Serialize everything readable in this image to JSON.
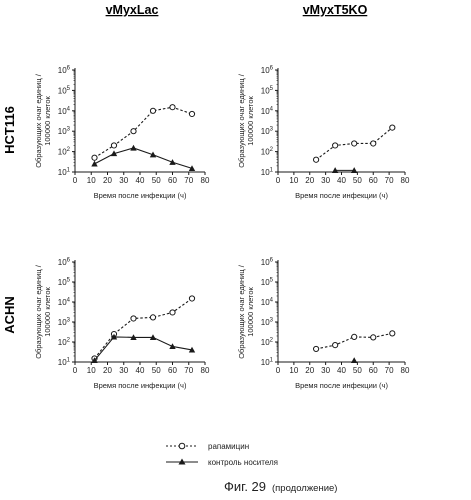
{
  "columns": [
    "vMyxLac",
    "vMyxT5KO"
  ],
  "rows": [
    "HCT116",
    "ACHN"
  ],
  "caption": {
    "main": "Фиг. 29",
    "sub": "(продолжение)"
  },
  "legend": [
    {
      "label": "рапамицин",
      "marker": "circle"
    },
    {
      "label": "контроль носителя",
      "marker": "triangle"
    }
  ],
  "colors": {
    "line": "#1a1a1a",
    "axis": "#1a1a1a",
    "marker_fill": "#ffffff"
  },
  "chart_data": [
    {
      "type": "line",
      "row": "HCT116",
      "column": "vMyxLac",
      "xlabel": "Время после инфекции (ч)",
      "ylabel": "Образующих очаг единиц / 100000 клеток",
      "xlim": [
        0,
        80
      ],
      "ylim": [
        10,
        1000000
      ],
      "yscale": "log",
      "xticks": [
        "0",
        "10",
        "20",
        "30",
        "40",
        "50",
        "60",
        "70",
        "80"
      ],
      "yticks": [
        "10^1",
        "10^2",
        "10^3",
        "10^4",
        "10^5",
        "10^6"
      ],
      "series": [
        {
          "marker": "circle",
          "style": "dashed",
          "x": [
            12,
            24,
            36,
            48,
            60,
            72
          ],
          "y": [
            50,
            200,
            1000,
            10000,
            15000,
            7000
          ]
        },
        {
          "marker": "triangle",
          "style": "solid",
          "x": [
            12,
            24,
            36,
            48,
            60,
            72
          ],
          "y": [
            25,
            80,
            150,
            70,
            30,
            15
          ]
        }
      ]
    },
    {
      "type": "line",
      "row": "HCT116",
      "column": "vMyxT5KO",
      "xlabel": "Время после инфекции (ч)",
      "ylabel": "Образующих очаг единиц / 100000 клеток",
      "xlim": [
        0,
        80
      ],
      "ylim": [
        10,
        1000000
      ],
      "yscale": "log",
      "xticks": [
        "0",
        "10",
        "20",
        "30",
        "40",
        "50",
        "60",
        "70",
        "80"
      ],
      "yticks": [
        "10^1",
        "10^2",
        "10^3",
        "10^4",
        "10^5",
        "10^6"
      ],
      "series": [
        {
          "marker": "circle",
          "style": "dashed",
          "x": [
            24,
            36,
            48,
            60,
            72
          ],
          "y": [
            40,
            200,
            250,
            250,
            1500
          ]
        },
        {
          "marker": "triangle",
          "style": "solid",
          "x": [
            36,
            48
          ],
          "y": [
            12,
            12
          ]
        }
      ]
    },
    {
      "type": "line",
      "row": "ACHN",
      "column": "vMyxLac",
      "xlabel": "Время после инфекции (ч)",
      "ylabel": "Образующих очаг единиц / 100000 клеток",
      "xlim": [
        0,
        80
      ],
      "ylim": [
        10,
        1000000
      ],
      "yscale": "log",
      "xticks": [
        "0",
        "10",
        "20",
        "30",
        "40",
        "50",
        "60",
        "70",
        "80"
      ],
      "yticks": [
        "10^1",
        "10^2",
        "10^3",
        "10^4",
        "10^5",
        "10^6"
      ],
      "series": [
        {
          "marker": "circle",
          "style": "dashed",
          "x": [
            12,
            24,
            36,
            48,
            60,
            72
          ],
          "y": [
            15,
            250,
            1500,
            1700,
            3000,
            15000
          ]
        },
        {
          "marker": "triangle",
          "style": "solid",
          "x": [
            12,
            24,
            36,
            48,
            60,
            72
          ],
          "y": [
            12,
            180,
            170,
            170,
            60,
            40
          ]
        }
      ]
    },
    {
      "type": "line",
      "row": "ACHN",
      "column": "vMyxT5KO",
      "xlabel": "Время после инфекции (ч)",
      "ylabel": "Образующих очаг единиц / 100000 клеток",
      "xlim": [
        0,
        80
      ],
      "ylim": [
        10,
        1000000
      ],
      "yscale": "log",
      "xticks": [
        "0",
        "10",
        "20",
        "30",
        "40",
        "50",
        "60",
        "70",
        "80"
      ],
      "yticks": [
        "10^1",
        "10^2",
        "10^3",
        "10^4",
        "10^5",
        "10^6"
      ],
      "series": [
        {
          "marker": "circle",
          "style": "dashed",
          "x": [
            24,
            36,
            48,
            60,
            72
          ],
          "y": [
            45,
            70,
            180,
            170,
            270
          ]
        },
        {
          "marker": "triangle",
          "style": "solid",
          "x": [
            48
          ],
          "y": [
            12
          ]
        }
      ]
    }
  ]
}
